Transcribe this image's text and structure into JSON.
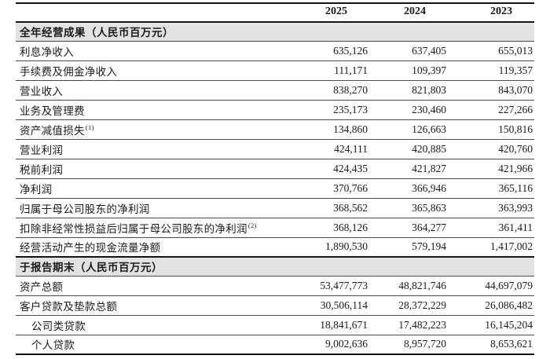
{
  "columns": [
    "2025",
    "2024",
    "2023"
  ],
  "sections": [
    {
      "header": "全年经营成果（人民币百万元）",
      "rows": [
        {
          "label": "利息净收入",
          "values": [
            "635,126",
            "637,405",
            "655,013"
          ]
        },
        {
          "label": "手续费及佣金净收入",
          "values": [
            "111,171",
            "109,397",
            "119,357"
          ]
        },
        {
          "label": "营业收入",
          "values": [
            "838,270",
            "821,803",
            "843,070"
          ]
        },
        {
          "label": "业务及管理费",
          "values": [
            "235,173",
            "230,460",
            "227,266"
          ]
        },
        {
          "label": "资产减值损失",
          "sup": "(1)",
          "values": [
            "134,860",
            "126,663",
            "150,816"
          ]
        },
        {
          "label": "营业利润",
          "values": [
            "424,111",
            "420,885",
            "420,760"
          ]
        },
        {
          "label": "税前利润",
          "values": [
            "424,435",
            "421,827",
            "421,966"
          ]
        },
        {
          "label": "净利润",
          "values": [
            "370,766",
            "366,946",
            "365,116"
          ]
        },
        {
          "label": "归属于母公司股东的净利润",
          "values": [
            "368,562",
            "365,863",
            "363,993"
          ]
        },
        {
          "label": "扣除非经常性损益后归属于母公司股东的净利润",
          "sup": "(2)",
          "values": [
            "368,126",
            "364,277",
            "361,411"
          ]
        },
        {
          "label": "经营活动产生的现金流量净额",
          "values": [
            "1,890,530",
            "579,194",
            "1,417,002"
          ]
        }
      ]
    },
    {
      "header": "于报告期末（人民币百万元）",
      "rows": [
        {
          "label": "资产总额",
          "values": [
            "53,477,773",
            "48,821,746",
            "44,697,079"
          ]
        },
        {
          "label": "客户贷款及垫款总额",
          "values": [
            "30,506,114",
            "28,372,229",
            "26,086,482"
          ]
        },
        {
          "label": "公司类贷款",
          "indent": true,
          "values": [
            "18,841,671",
            "17,482,223",
            "16,145,204"
          ]
        },
        {
          "label": "个人贷款",
          "indent": true,
          "values": [
            "9,002,636",
            "8,957,720",
            "8,653,621"
          ]
        }
      ]
    }
  ],
  "colors": {
    "section_band_bg": "#e2e2e2",
    "rule_thick": "#141414",
    "rule_thin": "#4a4a4a",
    "text": "#1a1a1a",
    "page_bg": "#ffffff"
  }
}
